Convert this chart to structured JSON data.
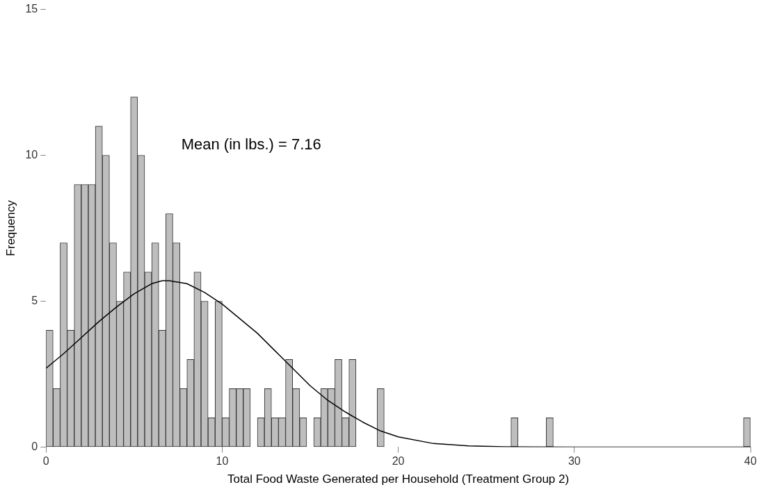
{
  "chart_data": {
    "type": "histogram",
    "xlabel": "Total Food Waste Generated per Household (Treatment Group 2)",
    "ylabel": "Frequency",
    "annotations": [
      "Mean (in lbs.) = 7.16"
    ],
    "bins": [
      0,
      0.4,
      0.8,
      1.2,
      1.6,
      2,
      2.4,
      2.8,
      3.2,
      3.6,
      4,
      4.4,
      4.8,
      5.2,
      5.6,
      6,
      6.4,
      6.8,
      7.2,
      7.6,
      8,
      8.4,
      8.8,
      9.2,
      9.6,
      10,
      10.4,
      10.8,
      11.2,
      11.6,
      12,
      12.4,
      12.8,
      13.2,
      13.6,
      14,
      14.4,
      14.8,
      15.2,
      15.6,
      16,
      16.4,
      16.8,
      17.2,
      17.6,
      18,
      18.4,
      18.8,
      19.2,
      19.6,
      20,
      20.4,
      20.8,
      21.2,
      21.6,
      22,
      22.4,
      22.8,
      23.2,
      23.6,
      24,
      24.4,
      24.8,
      25.2,
      25.6,
      26,
      26.4,
      26.8,
      27.2,
      27.6,
      28,
      28.4,
      28.8,
      29.2,
      29.6,
      30,
      30.4,
      30.8,
      31.2,
      31.6,
      32,
      32.4,
      32.8,
      33.2,
      33.6,
      34,
      34.4,
      34.8,
      35.2,
      35.6,
      36,
      36.4,
      36.8,
      37.2,
      37.6,
      38,
      38.4,
      38.8,
      39.2,
      39.6,
      40
    ],
    "series": [
      {
        "color": "#bebebe",
        "values": [
          4,
          2,
          7,
          4,
          9,
          9,
          9,
          11,
          10,
          7,
          5,
          6,
          12,
          10,
          6,
          7,
          4,
          8,
          7,
          2,
          3,
          6,
          5,
          1,
          5,
          1,
          2,
          2,
          2,
          0,
          1,
          2,
          1,
          1,
          3,
          2,
          1,
          0,
          1,
          2,
          2,
          3,
          1,
          3,
          0,
          0,
          0,
          2,
          0,
          0,
          0,
          0,
          0,
          0,
          0,
          0,
          0,
          0,
          0,
          0,
          0,
          0,
          0,
          0,
          0,
          0,
          1,
          0,
          0,
          0,
          0,
          1,
          0,
          0,
          0,
          0,
          0,
          0,
          0,
          0,
          0,
          0,
          0,
          0,
          0,
          0,
          0,
          0,
          0,
          0,
          0,
          0,
          0,
          0,
          0,
          0,
          0,
          0,
          0,
          1
        ]
      },
      {
        "type": "line",
        "color": "#000000",
        "x": [
          0,
          1,
          2,
          3,
          4,
          5,
          6,
          6.6,
          7,
          8,
          9,
          10,
          11,
          12,
          13,
          14,
          15,
          16,
          17,
          18,
          19,
          20,
          22,
          24,
          26,
          30,
          40
        ],
        "values": [
          2.7,
          3.2,
          3.75,
          4.3,
          4.8,
          5.25,
          5.6,
          5.7,
          5.7,
          5.6,
          5.3,
          4.9,
          4.4,
          3.9,
          3.3,
          2.7,
          2.1,
          1.6,
          1.2,
          0.85,
          0.55,
          0.35,
          0.12,
          0.04,
          0.01,
          0,
          0
        ]
      }
    ],
    "marker": "none",
    "line_style": "solid",
    "grid": false,
    "legend": false,
    "xlim": [
      0,
      40
    ],
    "xticks": [
      0,
      10,
      20,
      30,
      40
    ],
    "ylim": [
      0,
      15
    ],
    "yticks": [
      0,
      5,
      10,
      15
    ]
  }
}
